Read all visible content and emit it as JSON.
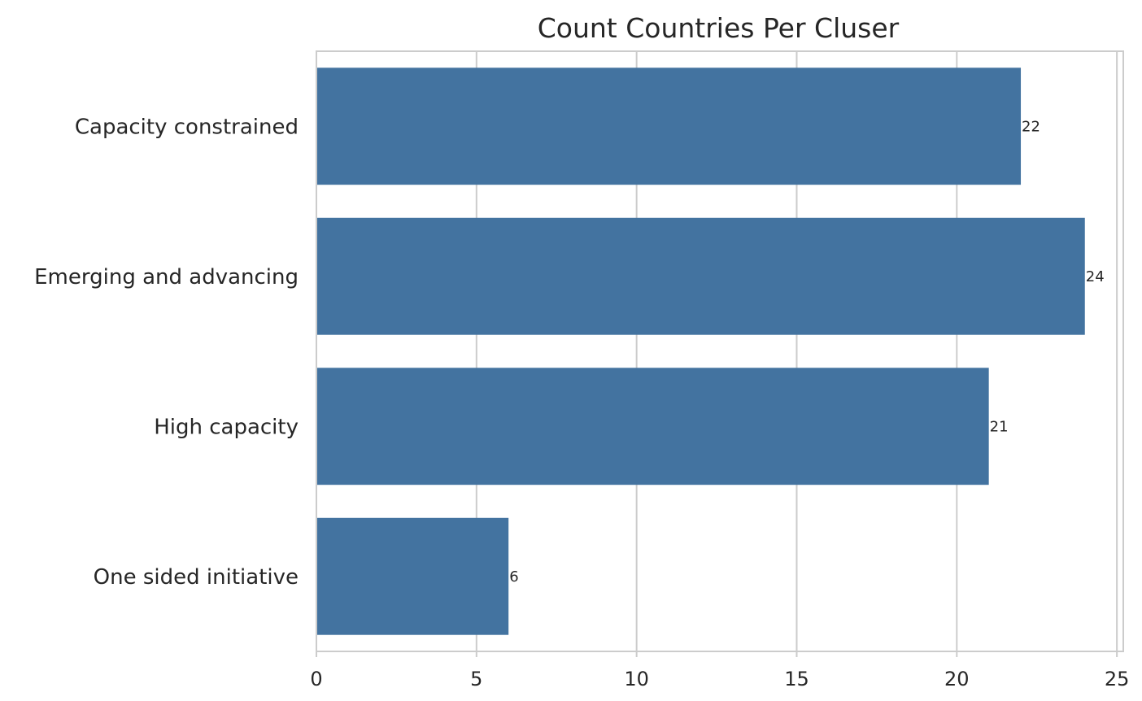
{
  "chart_data": {
    "type": "bar",
    "orientation": "horizontal",
    "title": "Count Countries Per Cluser",
    "xlabel": "",
    "ylabel": "",
    "categories": [
      "Capacity constrained",
      "Emerging and advancing",
      "High capacity",
      "One sided initiative"
    ],
    "values": [
      22,
      24,
      21,
      6
    ],
    "xlim": [
      0,
      25.2
    ],
    "xticks": [
      0,
      5,
      10,
      15,
      20,
      25
    ],
    "grid": true,
    "bar_color": "#4373a0"
  }
}
